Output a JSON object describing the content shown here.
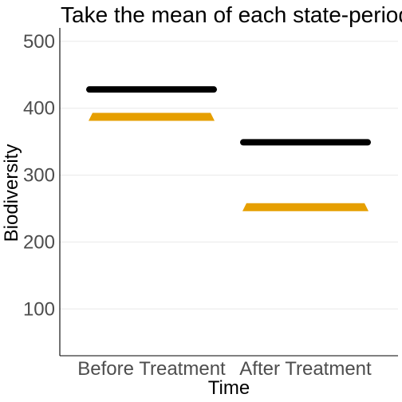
{
  "chart_data": {
    "type": "line",
    "title": "Take the mean of each state-period",
    "xlabel": "Time",
    "ylabel": "Biodiversity",
    "categories": [
      "Before Treatment",
      "After Treatment"
    ],
    "ylim": [
      30,
      520
    ],
    "y_ticks": [
      100,
      200,
      300,
      400,
      500
    ],
    "y_tick_labels": [
      "100",
      "200",
      "300",
      "400",
      "500"
    ],
    "grid": "horizontal",
    "series": [
      {
        "color": "#000000",
        "marker": "segment",
        "values": [
          428,
          349
        ]
      },
      {
        "color": "#E69F00",
        "marker": "triangle-segment",
        "values": [
          387,
          252
        ]
      }
    ]
  }
}
